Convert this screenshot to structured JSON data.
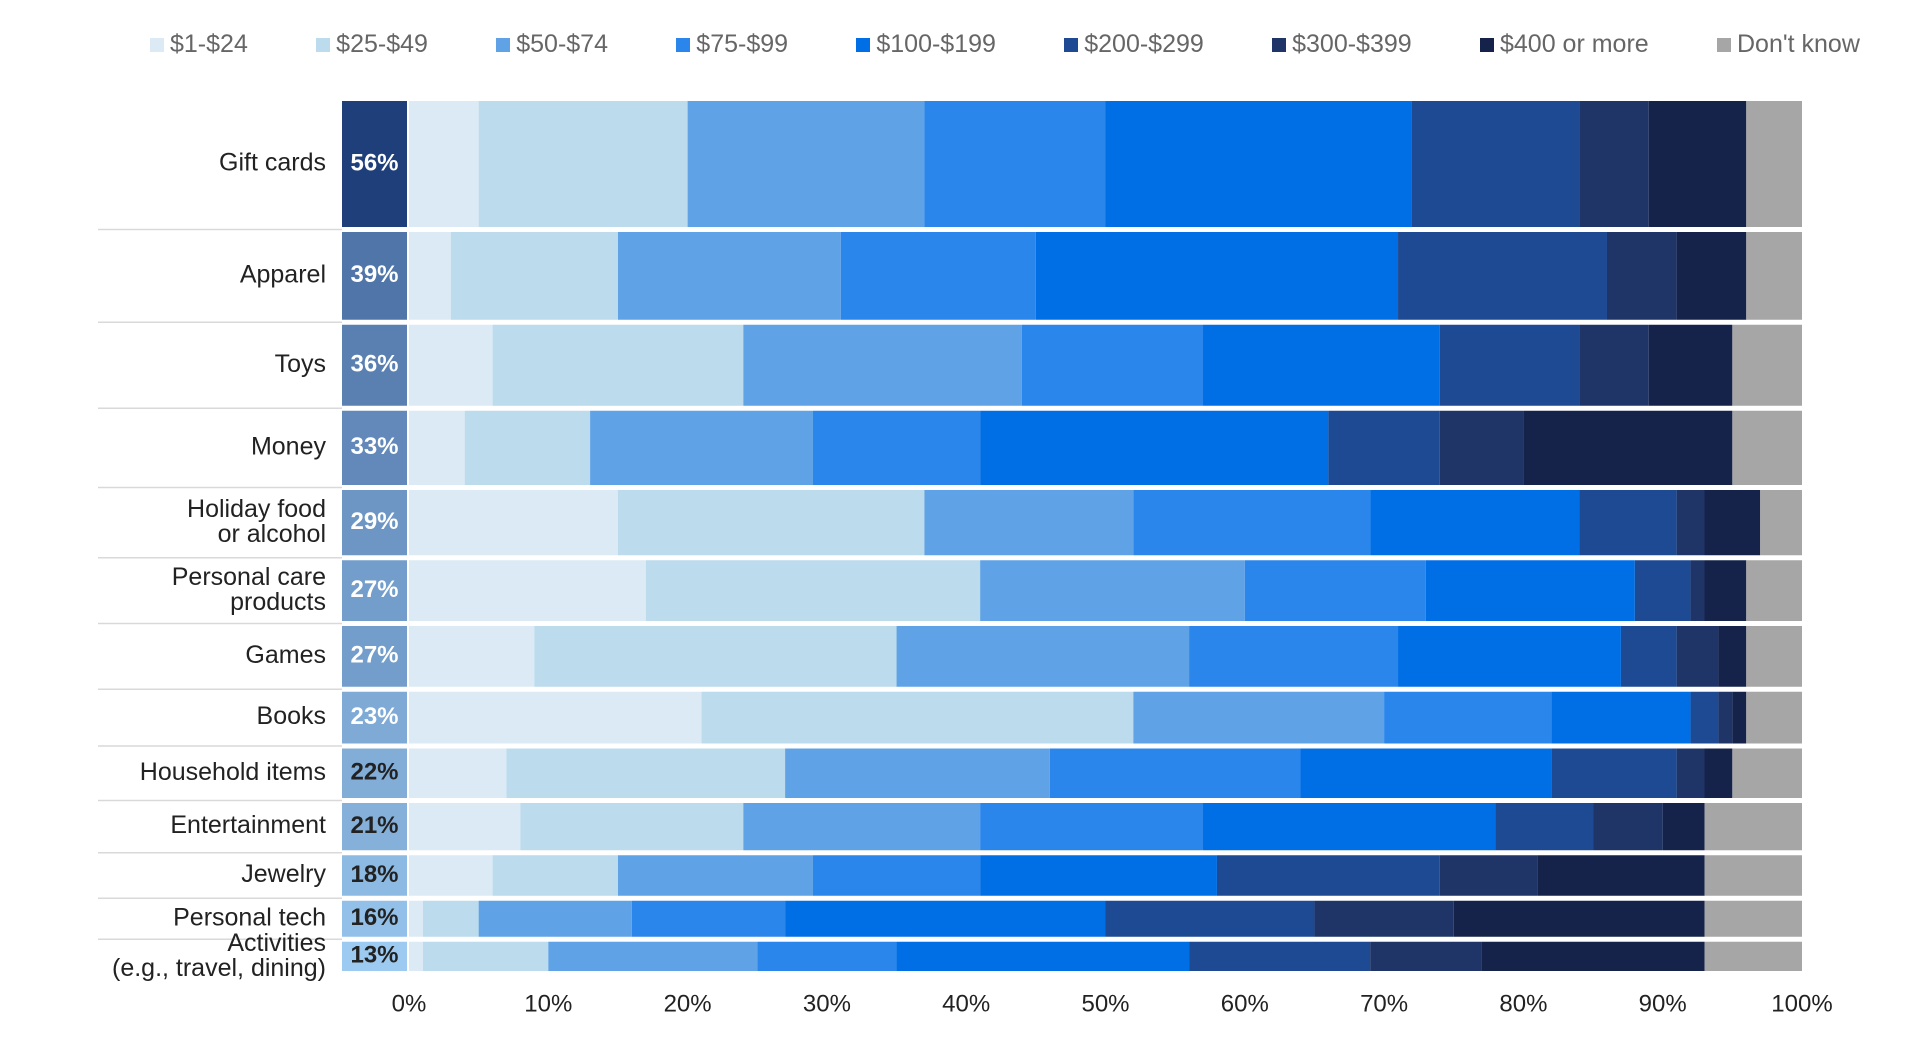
{
  "chart_data": {
    "type": "stacked-bar-horizontal",
    "categories": [
      "Gift cards",
      "Apparel",
      "Toys",
      "Money",
      "Holiday food\nor alcohol",
      "Personal care\nproducts",
      "Games",
      "Books",
      "Household items",
      "Entertainment",
      "Jewelry",
      "Personal tech",
      "Activities\n(e.g., travel, dining)"
    ],
    "share_values": [
      56,
      39,
      36,
      33,
      29,
      27,
      27,
      23,
      22,
      21,
      18,
      16,
      13
    ],
    "share_labels": [
      "56%",
      "39%",
      "36%",
      "33%",
      "29%",
      "27%",
      "27%",
      "23%",
      "22%",
      "21%",
      "18%",
      "16%",
      "13%"
    ],
    "series": [
      {
        "name": "$1-$24",
        "color": "#dbeaf4",
        "values": [
          5,
          3,
          6,
          4,
          15,
          17,
          9,
          21,
          7,
          8,
          6,
          1,
          1
        ]
      },
      {
        "name": "$25-$49",
        "color": "#bcdcee",
        "values": [
          15,
          12,
          18,
          9,
          22,
          24,
          26,
          31,
          20,
          16,
          9,
          4,
          9
        ]
      },
      {
        "name": "$50-$74",
        "color": "#5fa3e6",
        "values": [
          17,
          16,
          20,
          16,
          15,
          19,
          21,
          18,
          19,
          17,
          14,
          11,
          15
        ]
      },
      {
        "name": "$75-$99",
        "color": "#2b86ec",
        "values": [
          13,
          14,
          13,
          12,
          17,
          13,
          15,
          12,
          18,
          16,
          12,
          11,
          10
        ]
      },
      {
        "name": "$100-$199",
        "color": "#006fe6",
        "values": [
          22,
          26,
          17,
          25,
          15,
          15,
          16,
          10,
          18,
          21,
          17,
          23,
          21
        ]
      },
      {
        "name": "$200-$299",
        "color": "#1e4a94",
        "values": [
          12,
          15,
          10,
          8,
          7,
          4,
          4,
          2,
          9,
          7,
          16,
          15,
          13
        ]
      },
      {
        "name": "$300-$399",
        "color": "#1f3567",
        "values": [
          5,
          5,
          5,
          6,
          2,
          1,
          3,
          1,
          2,
          5,
          7,
          10,
          8
        ]
      },
      {
        "name": "$400 or more",
        "color": "#15234a",
        "values": [
          7,
          5,
          6,
          15,
          4,
          3,
          2,
          1,
          2,
          3,
          12,
          18,
          16
        ]
      },
      {
        "name": "Don't know",
        "color": "#a6a6a6",
        "values": [
          4,
          4,
          5,
          5,
          3,
          4,
          4,
          4,
          5,
          7,
          7,
          7,
          7
        ]
      }
    ],
    "xlim": [
      0,
      100
    ],
    "xticks": [
      {
        "value": 0,
        "label": "0%"
      },
      {
        "value": 10,
        "label": "10%"
      },
      {
        "value": 20,
        "label": "20%"
      },
      {
        "value": 30,
        "label": "30%"
      },
      {
        "value": 40,
        "label": "40%"
      },
      {
        "value": 50,
        "label": "50%"
      },
      {
        "value": 60,
        "label": "60%"
      },
      {
        "value": 70,
        "label": "70%"
      },
      {
        "value": 80,
        "label": "80%"
      },
      {
        "value": 90,
        "label": "90%"
      },
      {
        "value": 100,
        "label": "100%"
      }
    ]
  }
}
